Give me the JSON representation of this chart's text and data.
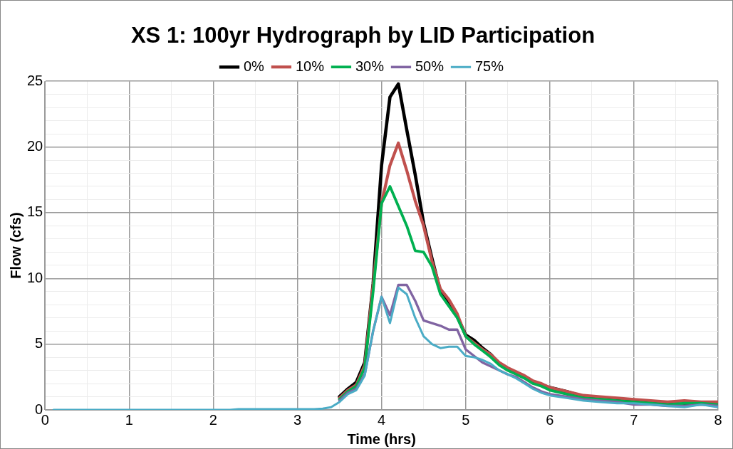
{
  "chart_data": {
    "type": "line",
    "title": "XS 1: 100yr Hydrograph by LID Participation",
    "xlabel": "Time (hrs)",
    "ylabel": "Flow (cfs)",
    "x": [
      0.1,
      1,
      2,
      2.2,
      2.3,
      3,
      3.2,
      3.3,
      3.4,
      3.5,
      3.6,
      3.7,
      3.8,
      3.9,
      4.0,
      4.1,
      4.2,
      4.3,
      4.4,
      4.5,
      4.6,
      4.7,
      4.8,
      4.9,
      5.0,
      5.1,
      5.2,
      5.3,
      5.4,
      5.5,
      5.6,
      5.7,
      5.8,
      5.9,
      6.0,
      6.2,
      6.4,
      6.6,
      6.8,
      7.0,
      7.2,
      7.4,
      7.6,
      7.8,
      8.0
    ],
    "series": [
      {
        "name": "0%",
        "color": "#000000",
        "values": [
          null,
          null,
          null,
          null,
          null,
          null,
          null,
          null,
          null,
          1.0,
          1.6,
          2.1,
          3.6,
          9.6,
          18.6,
          23.8,
          24.8,
          21.3,
          17.9,
          14.2,
          11.5,
          9.0,
          8.0,
          7.1,
          5.7,
          5.3,
          4.7,
          4.2,
          3.5,
          3.1,
          2.8,
          2.5,
          2.1,
          1.9,
          1.7,
          1.4,
          1.0,
          0.8,
          0.7,
          0.6,
          0.5,
          0.5,
          0.4,
          0.5,
          0.5
        ]
      },
      {
        "name": "10%",
        "color": "#c0504d",
        "values": [
          null,
          null,
          null,
          null,
          null,
          null,
          null,
          null,
          null,
          0.9,
          1.5,
          1.9,
          3.4,
          9.5,
          15.7,
          18.6,
          20.3,
          18.2,
          15.9,
          14.0,
          11.3,
          9.2,
          8.4,
          7.3,
          5.6,
          5.1,
          4.6,
          4.2,
          3.6,
          3.2,
          2.9,
          2.6,
          2.2,
          2.0,
          1.7,
          1.4,
          1.1,
          1.0,
          0.9,
          0.8,
          0.7,
          0.6,
          0.7,
          0.6,
          0.6
        ]
      },
      {
        "name": "30%",
        "color": "#00b050",
        "values": [
          null,
          null,
          null,
          null,
          null,
          null,
          null,
          null,
          null,
          0.8,
          1.4,
          1.8,
          3.2,
          9.0,
          15.7,
          17.0,
          15.5,
          14.0,
          12.1,
          12.0,
          10.9,
          8.8,
          7.9,
          7.0,
          5.6,
          5.0,
          4.5,
          4.0,
          3.4,
          3.0,
          2.7,
          2.4,
          2.0,
          1.8,
          1.5,
          1.2,
          0.9,
          0.8,
          0.7,
          0.6,
          0.5,
          0.4,
          0.5,
          0.5,
          0.4
        ]
      },
      {
        "name": "50%",
        "color": "#8064a2",
        "values": [
          null,
          null,
          null,
          null,
          null,
          null,
          null,
          null,
          null,
          0.7,
          1.3,
          1.6,
          2.7,
          6.0,
          8.6,
          7.2,
          9.5,
          9.5,
          8.3,
          6.8,
          6.6,
          6.4,
          6.1,
          6.1,
          4.6,
          4.1,
          3.6,
          3.3,
          3.0,
          2.7,
          2.5,
          2.1,
          1.7,
          1.4,
          1.2,
          1.0,
          0.8,
          0.7,
          0.6,
          0.4,
          0.4,
          0.3,
          0.3,
          0.4,
          0.3
        ]
      },
      {
        "name": "75%",
        "color": "#4bacc6",
        "values": [
          0,
          0,
          0,
          0,
          0.05,
          0.05,
          0.05,
          0.1,
          0.2,
          0.6,
          1.2,
          1.5,
          2.6,
          6.0,
          8.6,
          6.6,
          9.3,
          8.8,
          7.0,
          5.6,
          5.0,
          4.7,
          4.8,
          4.8,
          4.1,
          4.0,
          3.8,
          3.5,
          3.0,
          2.7,
          2.4,
          2.0,
          1.6,
          1.3,
          1.1,
          0.9,
          0.7,
          0.6,
          0.5,
          0.5,
          0.4,
          0.3,
          0.2,
          0.4,
          0.2
        ]
      }
    ],
    "xlim": [
      0,
      8
    ],
    "xticks": [
      0,
      {
        "value": 0.5,
        "label": null
      },
      1,
      {
        "value": 1.5,
        "label": null
      },
      2,
      {
        "value": 2.5,
        "label": null
      },
      3,
      {
        "value": 3.5,
        "label": null
      },
      4,
      {
        "value": 4.5,
        "label": null
      },
      5,
      {
        "value": 5.5,
        "label": null
      },
      6,
      {
        "value": 6.5,
        "label": null
      },
      7,
      {
        "value": 7.5,
        "label": null
      },
      8
    ],
    "ylim": [
      0,
      25
    ],
    "yticks": [
      0,
      {
        "value": 1,
        "label": null
      },
      {
        "value": 2,
        "label": null
      },
      {
        "value": 3,
        "label": null
      },
      {
        "value": 4,
        "label": null
      },
      5,
      {
        "value": 6,
        "label": null
      },
      {
        "value": 7,
        "label": null
      },
      {
        "value": 8,
        "label": null
      },
      {
        "value": 9,
        "label": null
      },
      10,
      {
        "value": 11,
        "label": null
      },
      {
        "value": 12,
        "label": null
      },
      {
        "value": 13,
        "label": null
      },
      {
        "value": 14,
        "label": null
      },
      15,
      {
        "value": 16,
        "label": null
      },
      {
        "value": 17,
        "label": null
      },
      {
        "value": 18,
        "label": null
      },
      {
        "value": 19,
        "label": null
      },
      20,
      {
        "value": 21,
        "label": null
      },
      {
        "value": 22,
        "label": null
      },
      {
        "value": 23,
        "label": null
      },
      {
        "value": 24,
        "label": null
      },
      25
    ],
    "grid": true,
    "legend": "top",
    "marker": "none",
    "line_style": "solid"
  }
}
